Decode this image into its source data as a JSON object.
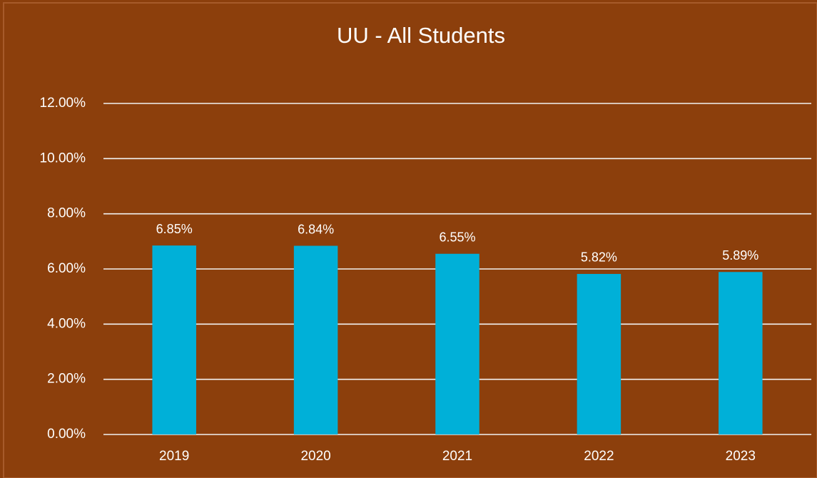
{
  "chart_data": {
    "type": "bar",
    "title": "UU - All Students",
    "categories": [
      "2019",
      "2020",
      "2021",
      "2022",
      "2023"
    ],
    "values": [
      6.85,
      6.84,
      6.55,
      5.82,
      5.89
    ],
    "value_labels": [
      "6.85%",
      "6.84%",
      "6.55%",
      "5.82%",
      "5.89%"
    ],
    "color": "#00b0d8",
    "ylim": [
      0,
      12
    ],
    "yticks": [
      {
        "value": 0,
        "label": "0.00%"
      },
      {
        "value": 2,
        "label": "2.00%"
      },
      {
        "value": 4,
        "label": "4.00%"
      },
      {
        "value": 6,
        "label": "6.00%"
      },
      {
        "value": 8,
        "label": "8.00%"
      },
      {
        "value": 10,
        "label": "10.00%"
      },
      {
        "value": 12,
        "label": "12.00%"
      }
    ],
    "grid": true
  }
}
